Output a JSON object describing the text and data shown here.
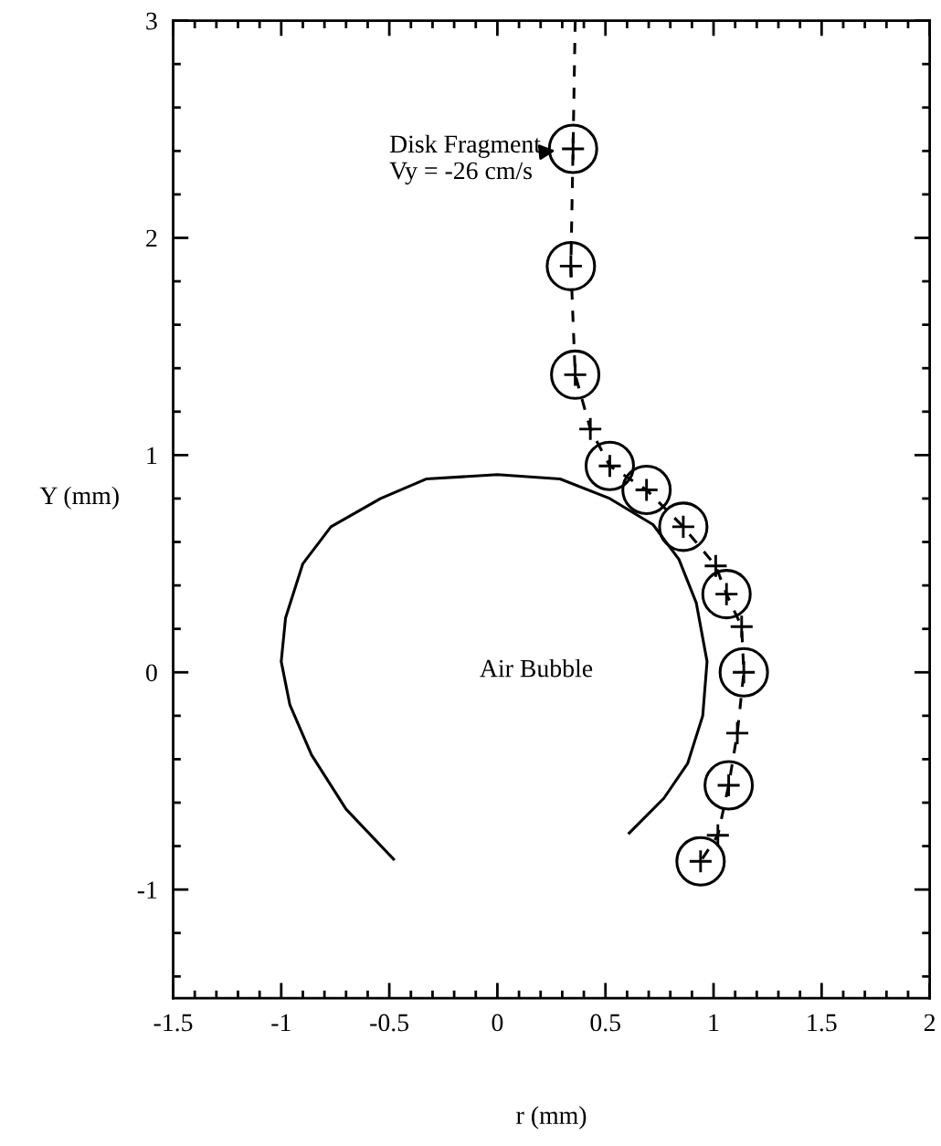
{
  "chart_data": {
    "type": "line",
    "xlabel": "r (mm)",
    "ylabel": "Y (mm)",
    "xlim": [
      -1.5,
      2
    ],
    "ylim": [
      -1.5,
      3
    ],
    "xticks": [
      -1.5,
      -1,
      -0.5,
      0,
      0.5,
      1,
      1.5,
      2
    ],
    "yticks": [
      -1,
      0,
      1,
      2,
      3
    ],
    "grid": false,
    "legend": false,
    "series": [
      {
        "color": "#000000",
        "line_style": "solid",
        "marker": "none",
        "x": [
          -0.48,
          -0.7,
          -0.86,
          -0.96,
          -1.0,
          -0.98,
          -0.9,
          -0.77,
          -0.54,
          -0.33,
          0.0,
          0.29,
          0.52,
          0.72,
          0.84,
          0.92,
          0.97,
          0.95,
          0.88,
          0.77,
          0.61
        ],
        "values": [
          -0.86,
          -0.63,
          -0.38,
          -0.15,
          0.05,
          0.25,
          0.5,
          0.67,
          0.8,
          0.89,
          0.91,
          0.89,
          0.8,
          0.68,
          0.52,
          0.32,
          0.05,
          -0.2,
          -0.42,
          -0.58,
          -0.74
        ]
      },
      {
        "color": "#000000",
        "line_style": "dashed",
        "x": [
          0.36,
          0.35,
          0.34,
          0.36,
          0.43,
          0.52,
          0.69,
          0.86,
          1.01,
          1.06,
          1.13,
          1.14,
          1.11,
          1.07,
          1.02,
          0.94
        ],
        "values": [
          3.0,
          2.41,
          1.87,
          1.37,
          1.12,
          0.95,
          0.84,
          0.67,
          0.49,
          0.36,
          0.21,
          0.0,
          -0.28,
          -0.52,
          -0.75,
          -0.87
        ]
      },
      {
        "type": "scatter",
        "color": "#000000",
        "marker": "circle",
        "x": [
          0.35,
          0.34,
          0.36,
          0.52,
          0.69,
          0.86,
          1.06,
          1.14,
          1.07,
          0.94
        ],
        "values": [
          2.41,
          1.87,
          1.37,
          0.95,
          0.84,
          0.67,
          0.36,
          0.0,
          -0.52,
          -0.87
        ]
      },
      {
        "type": "scatter",
        "color": "#000000",
        "marker": "cross",
        "x": [
          0.35,
          0.34,
          0.36,
          0.43,
          0.52,
          0.69,
          0.86,
          1.01,
          1.06,
          1.13,
          1.14,
          1.11,
          1.07,
          1.02,
          0.94
        ],
        "values": [
          2.41,
          1.87,
          1.37,
          1.12,
          0.95,
          0.84,
          0.67,
          0.49,
          0.36,
          0.21,
          0.0,
          -0.28,
          -0.52,
          -0.75,
          -0.87
        ]
      }
    ],
    "annotations": [
      {
        "text": "Disk Fragment\nVy = -26 cm/s",
        "x": 0.35,
        "y": 2.41
      },
      "Air Bubble"
    ]
  }
}
